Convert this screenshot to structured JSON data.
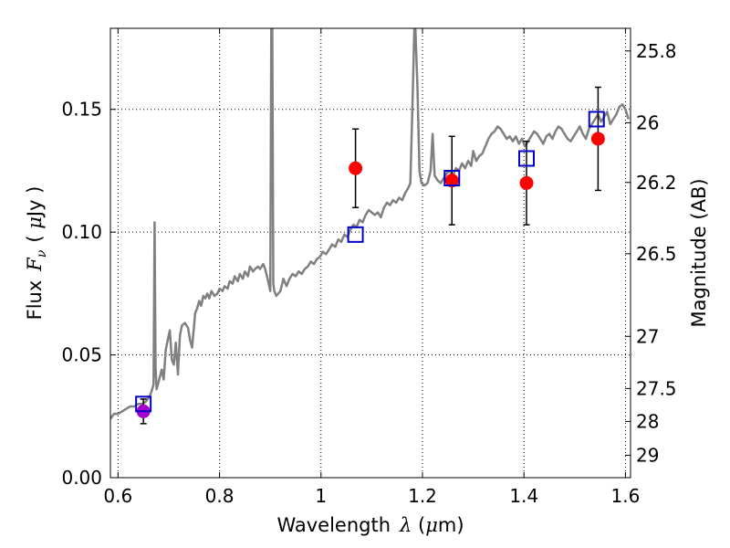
{
  "chart_data": {
    "type": "scatter",
    "title": "",
    "xlabel": "Wavelength",
    "xlabel_symbol": "λ",
    "xlabel_unit_open": " (",
    "xlabel_unit_mu": "μ",
    "xlabel_unit_rest": "m)",
    "ylabel": "Flux",
    "ylabel_symbol": "F",
    "ylabel_subscript": "ν",
    "ylabel_unit_open": "( ",
    "ylabel_unit_mu": "μ",
    "ylabel_unit_rest": "Jy )",
    "y2label": "Magnitude (AB)",
    "xlim": [
      0.585,
      1.61
    ],
    "ylim": [
      0.0,
      0.183
    ],
    "grid": true,
    "x_ticks": [
      {
        "value": 0.6,
        "label": "0.6"
      },
      {
        "value": 0.8,
        "label": "0.8"
      },
      {
        "value": 1.0,
        "label": "1"
      },
      {
        "value": 1.2,
        "label": "1.2"
      },
      {
        "value": 1.4,
        "label": "1.4"
      },
      {
        "value": 1.6,
        "label": "1.6"
      }
    ],
    "y_ticks": [
      {
        "value": 0.0,
        "label": "0.00"
      },
      {
        "value": 0.05,
        "label": "0.05"
      },
      {
        "value": 0.1,
        "label": "0.10"
      },
      {
        "value": 0.15,
        "label": "0.15"
      }
    ],
    "y2_ticks": [
      {
        "mag": 25.8,
        "label": "25.8"
      },
      {
        "mag": 26.0,
        "label": "26"
      },
      {
        "mag": 26.2,
        "label": "26.2"
      },
      {
        "mag": 26.5,
        "label": "26.5"
      },
      {
        "mag": 27.0,
        "label": "27"
      },
      {
        "mag": 27.5,
        "label": "27.5"
      },
      {
        "mag": 28.0,
        "label": "28"
      },
      {
        "mag": 29.0,
        "label": "29"
      }
    ],
    "colors": {
      "spectrum": "#808080",
      "observed": "#ff0000",
      "observed_first": "#aa00cc",
      "model": "#0000cc",
      "errorbar": "#000000"
    },
    "spectrum": [
      [
        0.585,
        0.024
      ],
      [
        0.592,
        0.026
      ],
      [
        0.6,
        0.026
      ],
      [
        0.608,
        0.027
      ],
      [
        0.616,
        0.028
      ],
      [
        0.624,
        0.029
      ],
      [
        0.632,
        0.029
      ],
      [
        0.64,
        0.03
      ],
      [
        0.648,
        0.03
      ],
      [
        0.655,
        0.031
      ],
      [
        0.662,
        0.033
      ],
      [
        0.666,
        0.035
      ],
      [
        0.67,
        0.038
      ],
      [
        0.672,
        0.104
      ],
      [
        0.674,
        0.045
      ],
      [
        0.676,
        0.036
      ],
      [
        0.68,
        0.039
      ],
      [
        0.686,
        0.044
      ],
      [
        0.69,
        0.04
      ],
      [
        0.694,
        0.052
      ],
      [
        0.698,
        0.056
      ],
      [
        0.702,
        0.06
      ],
      [
        0.706,
        0.048
      ],
      [
        0.71,
        0.046
      ],
      [
        0.714,
        0.055
      ],
      [
        0.718,
        0.042
      ],
      [
        0.722,
        0.058
      ],
      [
        0.726,
        0.062
      ],
      [
        0.732,
        0.063
      ],
      [
        0.738,
        0.061
      ],
      [
        0.742,
        0.056
      ],
      [
        0.746,
        0.053
      ],
      [
        0.752,
        0.067
      ],
      [
        0.756,
        0.069
      ],
      [
        0.76,
        0.072
      ],
      [
        0.764,
        0.07
      ],
      [
        0.768,
        0.074
      ],
      [
        0.772,
        0.073
      ],
      [
        0.776,
        0.075
      ],
      [
        0.78,
        0.073
      ],
      [
        0.784,
        0.076
      ],
      [
        0.79,
        0.074
      ],
      [
        0.796,
        0.075
      ],
      [
        0.8,
        0.077
      ],
      [
        0.806,
        0.076
      ],
      [
        0.81,
        0.078
      ],
      [
        0.816,
        0.077
      ],
      [
        0.82,
        0.08
      ],
      [
        0.826,
        0.079
      ],
      [
        0.83,
        0.082
      ],
      [
        0.836,
        0.08
      ],
      [
        0.84,
        0.083
      ],
      [
        0.846,
        0.081
      ],
      [
        0.85,
        0.084
      ],
      [
        0.856,
        0.082
      ],
      [
        0.86,
        0.086
      ],
      [
        0.866,
        0.084
      ],
      [
        0.87,
        0.085
      ],
      [
        0.876,
        0.086
      ],
      [
        0.88,
        0.085
      ],
      [
        0.886,
        0.087
      ],
      [
        0.89,
        0.085
      ],
      [
        0.896,
        0.08
      ],
      [
        0.9,
        0.076
      ],
      [
        0.902,
        0.183
      ],
      [
        0.904,
        0.183
      ],
      [
        0.906,
        0.079
      ],
      [
        0.908,
        0.076
      ],
      [
        0.912,
        0.074
      ],
      [
        0.92,
        0.076
      ],
      [
        0.926,
        0.081
      ],
      [
        0.932,
        0.078
      ],
      [
        0.938,
        0.081
      ],
      [
        0.944,
        0.083
      ],
      [
        0.95,
        0.082
      ],
      [
        0.956,
        0.084
      ],
      [
        0.962,
        0.083
      ],
      [
        0.968,
        0.085
      ],
      [
        0.974,
        0.086
      ],
      [
        0.98,
        0.088
      ],
      [
        0.986,
        0.087
      ],
      [
        0.992,
        0.089
      ],
      [
        0.998,
        0.09
      ],
      [
        1.004,
        0.092
      ],
      [
        1.01,
        0.091
      ],
      [
        1.016,
        0.093
      ],
      [
        1.022,
        0.095
      ],
      [
        1.028,
        0.094
      ],
      [
        1.034,
        0.097
      ],
      [
        1.04,
        0.096
      ],
      [
        1.046,
        0.099
      ],
      [
        1.052,
        0.098
      ],
      [
        1.058,
        0.101
      ],
      [
        1.064,
        0.103
      ],
      [
        1.07,
        0.102
      ],
      [
        1.076,
        0.105
      ],
      [
        1.082,
        0.104
      ],
      [
        1.088,
        0.107
      ],
      [
        1.094,
        0.109
      ],
      [
        1.1,
        0.108
      ],
      [
        1.106,
        0.107
      ],
      [
        1.112,
        0.108
      ],
      [
        1.118,
        0.106
      ],
      [
        1.124,
        0.11
      ],
      [
        1.13,
        0.112
      ],
      [
        1.136,
        0.111
      ],
      [
        1.142,
        0.113
      ],
      [
        1.148,
        0.112
      ],
      [
        1.154,
        0.114
      ],
      [
        1.16,
        0.113
      ],
      [
        1.166,
        0.116
      ],
      [
        1.172,
        0.118
      ],
      [
        1.176,
        0.12
      ],
      [
        1.18,
        0.15
      ],
      [
        1.184,
        0.183
      ],
      [
        1.186,
        0.183
      ],
      [
        1.19,
        0.16
      ],
      [
        1.194,
        0.125
      ],
      [
        1.198,
        0.12
      ],
      [
        1.204,
        0.119
      ],
      [
        1.21,
        0.12
      ],
      [
        1.216,
        0.125
      ],
      [
        1.22,
        0.14
      ],
      [
        1.224,
        0.123
      ],
      [
        1.23,
        0.121
      ],
      [
        1.236,
        0.12
      ],
      [
        1.242,
        0.122
      ],
      [
        1.248,
        0.124
      ],
      [
        1.254,
        0.125
      ],
      [
        1.26,
        0.123
      ],
      [
        1.266,
        0.126
      ],
      [
        1.272,
        0.125
      ],
      [
        1.278,
        0.128
      ],
      [
        1.284,
        0.126
      ],
      [
        1.29,
        0.129
      ],
      [
        1.296,
        0.127
      ],
      [
        1.3,
        0.133
      ],
      [
        1.306,
        0.129
      ],
      [
        1.312,
        0.131
      ],
      [
        1.318,
        0.132
      ],
      [
        1.324,
        0.135
      ],
      [
        1.33,
        0.138
      ],
      [
        1.336,
        0.14
      ],
      [
        1.342,
        0.141
      ],
      [
        1.348,
        0.143
      ],
      [
        1.354,
        0.142
      ],
      [
        1.36,
        0.14
      ],
      [
        1.366,
        0.138
      ],
      [
        1.372,
        0.139
      ],
      [
        1.378,
        0.137
      ],
      [
        1.384,
        0.139
      ],
      [
        1.39,
        0.136
      ],
      [
        1.396,
        0.138
      ],
      [
        1.402,
        0.135
      ],
      [
        1.408,
        0.137
      ],
      [
        1.414,
        0.139
      ],
      [
        1.42,
        0.141
      ],
      [
        1.426,
        0.14
      ],
      [
        1.432,
        0.138
      ],
      [
        1.438,
        0.136
      ],
      [
        1.444,
        0.139
      ],
      [
        1.45,
        0.14
      ],
      [
        1.456,
        0.138
      ],
      [
        1.462,
        0.141
      ],
      [
        1.468,
        0.143
      ],
      [
        1.474,
        0.142
      ],
      [
        1.48,
        0.14
      ],
      [
        1.486,
        0.138
      ],
      [
        1.492,
        0.137
      ],
      [
        1.498,
        0.139
      ],
      [
        1.504,
        0.141
      ],
      [
        1.51,
        0.143
      ],
      [
        1.516,
        0.14
      ],
      [
        1.522,
        0.138
      ],
      [
        1.528,
        0.142
      ],
      [
        1.534,
        0.144
      ],
      [
        1.54,
        0.146
      ],
      [
        1.546,
        0.148
      ],
      [
        1.552,
        0.145
      ],
      [
        1.558,
        0.147
      ],
      [
        1.564,
        0.149
      ],
      [
        1.57,
        0.144
      ],
      [
        1.576,
        0.146
      ],
      [
        1.582,
        0.148
      ],
      [
        1.588,
        0.151
      ],
      [
        1.594,
        0.152
      ],
      [
        1.6,
        0.15
      ],
      [
        1.606,
        0.146
      ]
    ],
    "observed": [
      {
        "x": 0.65,
        "y": 0.027,
        "yerr": 0.005
      },
      {
        "x": 1.068,
        "y": 0.126,
        "yerr": 0.016
      },
      {
        "x": 1.258,
        "y": 0.121,
        "yerr": 0.018
      },
      {
        "x": 1.405,
        "y": 0.12,
        "yerr": 0.017
      },
      {
        "x": 1.546,
        "y": 0.138,
        "yerr": 0.021
      }
    ],
    "model": [
      {
        "x": 0.65,
        "y": 0.03
      },
      {
        "x": 1.068,
        "y": 0.099
      },
      {
        "x": 1.258,
        "y": 0.122
      },
      {
        "x": 1.405,
        "y": 0.13
      },
      {
        "x": 1.543,
        "y": 0.146
      }
    ]
  }
}
